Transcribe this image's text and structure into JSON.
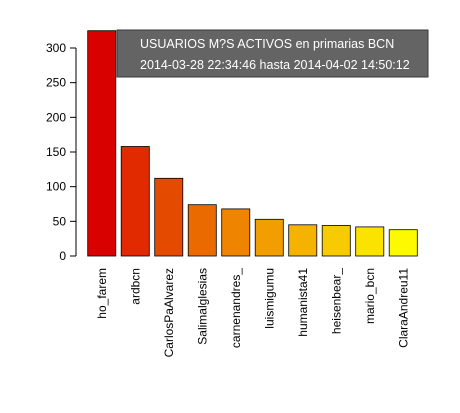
{
  "chart_data": {
    "type": "bar",
    "title": "",
    "xlabel": "",
    "ylabel": "",
    "categories": [
      "ho_farem",
      "ardbcn",
      "CarlosPaAlvarez",
      "Salimalglesias",
      "carnenandres_",
      "luismigumu",
      "humanista41",
      "heisenbear_",
      "mario_bcn",
      "ClaraAndreu11"
    ],
    "values": [
      325,
      158,
      112,
      74,
      68,
      53,
      45,
      44,
      42,
      38
    ],
    "bar_colors": [
      "#d90000",
      "#e22a00",
      "#e54b00",
      "#eb6a00",
      "#ee8400",
      "#f39e00",
      "#f5b300",
      "#f8cb00",
      "#fbe300",
      "#fdfa00"
    ],
    "ylim": [
      0,
      300
    ],
    "yticks": [
      0,
      50,
      100,
      150,
      200,
      250,
      300
    ],
    "grid": false,
    "legend": {
      "position": "top-right",
      "background": "#646464",
      "lines": [
        "USUARIOS M?S ACTIVOS en  primarias BCN",
        "2014-03-28 22:34:46  hasta  2014-04-02 14:50:12"
      ]
    }
  }
}
